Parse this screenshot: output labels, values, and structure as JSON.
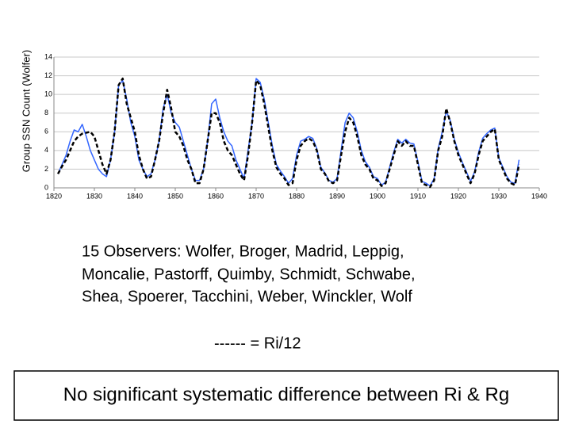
{
  "chart_data": {
    "type": "line",
    "ylabel": "Group SSN Count  (Wolfer)",
    "x": [
      1821,
      1822,
      1823,
      1824,
      1825,
      1826,
      1827,
      1828,
      1829,
      1830,
      1831,
      1832,
      1833,
      1834,
      1835,
      1836,
      1837,
      1838,
      1839,
      1840,
      1841,
      1842,
      1843,
      1844,
      1845,
      1846,
      1847,
      1848,
      1849,
      1850,
      1851,
      1852,
      1853,
      1854,
      1855,
      1856,
      1857,
      1858,
      1859,
      1860,
      1861,
      1862,
      1863,
      1864,
      1865,
      1866,
      1867,
      1868,
      1869,
      1870,
      1871,
      1872,
      1873,
      1874,
      1875,
      1876,
      1877,
      1878,
      1879,
      1880,
      1881,
      1882,
      1883,
      1884,
      1885,
      1886,
      1887,
      1888,
      1889,
      1890,
      1891,
      1892,
      1893,
      1894,
      1895,
      1896,
      1897,
      1898,
      1899,
      1900,
      1901,
      1902,
      1903,
      1904,
      1905,
      1906,
      1907,
      1908,
      1909,
      1910,
      1911,
      1912,
      1913,
      1914,
      1915,
      1916,
      1917,
      1918,
      1919,
      1920,
      1921,
      1922,
      1923,
      1924,
      1925,
      1926,
      1927,
      1928,
      1929,
      1930,
      1931,
      1932,
      1933,
      1934,
      1935
    ],
    "series": [
      {
        "color": "#3366ff",
        "dashed": false,
        "values": [
          1.5,
          2.5,
          3.5,
          5,
          6.2,
          6,
          6.8,
          5.5,
          4,
          3,
          2,
          1.5,
          1.2,
          3,
          6,
          11,
          11.5,
          9.5,
          7,
          5.5,
          3,
          2,
          1.2,
          1.5,
          3,
          5,
          8.5,
          10,
          8,
          7,
          6.5,
          5,
          3.5,
          2,
          0.8,
          0.8,
          2,
          5,
          9,
          9.5,
          7.5,
          6,
          5,
          4.5,
          3,
          2,
          1,
          4,
          7,
          11.7,
          11.3,
          9.5,
          7,
          4.5,
          2.5,
          1.8,
          1.2,
          0.5,
          1,
          3.5,
          5,
          5.2,
          5.5,
          5.3,
          4.2,
          2.2,
          1.6,
          0.8,
          0.6,
          1,
          4,
          7,
          8,
          7.5,
          6,
          4,
          2.8,
          2.2,
          1.2,
          1,
          0.3,
          0.6,
          2.2,
          3.8,
          5.2,
          4.8,
          5.2,
          4.8,
          4.7,
          2.8,
          0.7,
          0.5,
          0.2,
          1,
          4.2,
          6,
          8.2,
          7.2,
          5.2,
          3.8,
          2.7,
          1.7,
          0.7,
          1.7,
          3.8,
          5.3,
          5.8,
          6.2,
          6.4,
          3.2,
          2.2,
          1.2,
          0.6,
          0.5,
          3
        ]
      },
      {
        "color": "#000000",
        "dashed": true,
        "values": [
          1.5,
          2.3,
          3,
          4,
          5,
          5.5,
          5.8,
          5.9,
          6,
          5.5,
          4,
          2.5,
          1.5,
          3,
          6,
          11,
          11.7,
          9,
          7.5,
          6,
          3.5,
          2,
          1,
          1.2,
          3,
          5,
          8,
          10.5,
          8.5,
          6,
          5.5,
          4.5,
          3,
          2,
          0.5,
          0.5,
          2,
          5,
          8,
          8,
          7,
          5,
          4,
          3.5,
          2.5,
          1.5,
          0.8,
          3.5,
          7,
          11.5,
          11,
          9,
          6.5,
          4,
          2.2,
          1.5,
          1,
          0.3,
          0.5,
          3,
          4.5,
          5,
          5.3,
          5,
          4,
          2,
          1.5,
          0.7,
          0.5,
          0.8,
          3.5,
          6,
          7.5,
          7,
          5.5,
          3.5,
          2.5,
          2,
          1,
          0.8,
          0.2,
          0.5,
          2,
          3.5,
          5,
          4.5,
          5,
          4.5,
          4.5,
          2.5,
          0.5,
          0.3,
          0.1,
          0.8,
          4,
          5.5,
          8.5,
          7,
          5,
          3.5,
          2.5,
          1.5,
          0.5,
          1.5,
          3.5,
          5,
          5.5,
          6,
          6.3,
          3,
          2,
          1,
          0.5,
          0.3,
          2.5
        ]
      }
    ],
    "xlim": [
      1820,
      1940
    ],
    "xticks": [
      1820,
      1830,
      1840,
      1850,
      1860,
      1870,
      1880,
      1890,
      1900,
      1910,
      1920,
      1930,
      1940
    ],
    "ylim": [
      0,
      14
    ],
    "yticks": [
      0,
      2,
      4,
      6,
      8,
      10,
      12,
      14
    ],
    "grid": true,
    "note": [
      "15 Observers: Wolfer, Broger, Madrid, Leppig,",
      "Moncalie, Pastorff, Quimby, Schmidt, Schwabe,",
      "Shea, Spoerer, Tacchini, Weber, Winckler, Wolf"
    ],
    "dash_note": "------  =  Ri/12",
    "conclusion": "No significant systematic difference between Ri & Rg"
  }
}
